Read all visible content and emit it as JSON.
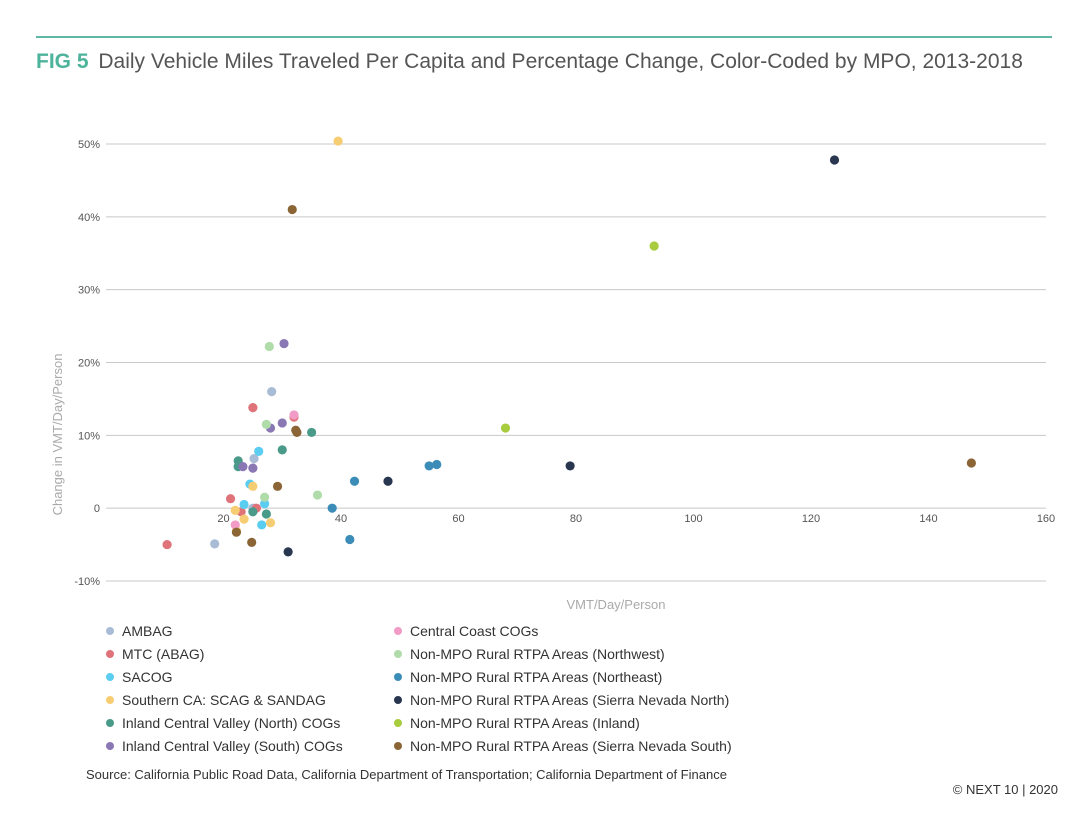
{
  "figure": {
    "label": "FIG 5",
    "title": "Daily Vehicle Miles Traveled Per Capita and Percentage Change, Color-Coded by MPO, 2013-2018",
    "source": "Source: California Public Road Data, California Department of Transportation; California Department of Finance",
    "copyright": "© NEXT 10 | 2020"
  },
  "chart_data": {
    "type": "scatter",
    "title": "Daily Vehicle Miles Traveled Per Capita and Percentage Change, Color-Coded by MPO, 2013-2018",
    "xlabel": "VMT/Day/Person",
    "ylabel": "Change in VMT/Day/Person",
    "xlim": [
      0,
      160
    ],
    "ylim": [
      -10,
      50
    ],
    "x_ticks": [
      "20",
      "40",
      "60",
      "80",
      "100",
      "120",
      "140",
      "160"
    ],
    "y_ticks": [
      "-10%",
      "0",
      "10%",
      "20%",
      "30%",
      "40%",
      "50%"
    ],
    "grid": "horizontal",
    "legend_position": "bottom-left",
    "series": [
      {
        "name": "AMBAG",
        "color": "#a9bcd6",
        "points": [
          [
            18.5,
            -4.9
          ],
          [
            25.2,
            6.8
          ],
          [
            28.2,
            16.0
          ],
          [
            25.0,
            0.0
          ]
        ]
      },
      {
        "name": "MTC (ABAG)",
        "color": "#e0727a",
        "points": [
          [
            10.4,
            -5.0
          ],
          [
            21.2,
            1.3
          ],
          [
            23.0,
            -0.5
          ],
          [
            25.0,
            13.8
          ],
          [
            25.6,
            0.0
          ],
          [
            32.0,
            12.5
          ]
        ]
      },
      {
        "name": "SACOG",
        "color": "#5bcdf0",
        "points": [
          [
            23.5,
            0.5
          ],
          [
            24.5,
            3.3
          ],
          [
            26.0,
            7.8
          ],
          [
            26.5,
            -2.3
          ],
          [
            27.0,
            0.6
          ]
        ]
      },
      {
        "name": "Southern CA: SCAG & SANDAG",
        "color": "#f7cd73",
        "points": [
          [
            22.0,
            -0.3
          ],
          [
            22.2,
            -3.1
          ],
          [
            23.5,
            -1.5
          ],
          [
            25.0,
            3.0
          ],
          [
            28.0,
            -2.0
          ],
          [
            39.5,
            50.4
          ]
        ]
      },
      {
        "name": "Inland Central Valley (North) COGs",
        "color": "#4a9a8a",
        "points": [
          [
            22.5,
            6.5
          ],
          [
            22.5,
            5.7
          ],
          [
            25.0,
            -0.5
          ],
          [
            27.3,
            -0.8
          ],
          [
            30.0,
            8.0
          ],
          [
            35.0,
            10.4
          ]
        ]
      },
      {
        "name": "Inland Central Valley (South) COGs",
        "color": "#8a78b4",
        "points": [
          [
            23.3,
            5.7
          ],
          [
            25.0,
            5.5
          ],
          [
            28.0,
            11.0
          ],
          [
            30.0,
            11.7
          ],
          [
            30.3,
            22.6
          ]
        ]
      },
      {
        "name": "Central Coast COGs",
        "color": "#f29bc6",
        "points": [
          [
            22.0,
            -2.3
          ],
          [
            32.0,
            12.8
          ]
        ]
      },
      {
        "name": "Non-MPO Rural RTPA Areas (Northwest)",
        "color": "#b0dcaa",
        "points": [
          [
            27.0,
            1.5
          ],
          [
            27.3,
            11.5
          ],
          [
            27.8,
            22.2
          ],
          [
            36.0,
            1.8
          ]
        ]
      },
      {
        "name": "Non-MPO Rural RTPA Areas (Northeast)",
        "color": "#3b8db8",
        "points": [
          [
            38.5,
            0.0
          ],
          [
            41.5,
            -4.3
          ],
          [
            42.3,
            3.7
          ],
          [
            55.0,
            5.8
          ],
          [
            56.3,
            6.0
          ]
        ]
      },
      {
        "name": "Non-MPO Rural RTPA Areas (Sierra Nevada North)",
        "color": "#283650",
        "points": [
          [
            31.0,
            -6.0
          ],
          [
            48.0,
            3.7
          ],
          [
            79.0,
            5.8
          ],
          [
            124.0,
            47.8
          ]
        ]
      },
      {
        "name": "Non-MPO Rural RTPA Areas (Inland)",
        "color": "#a7cc3e",
        "points": [
          [
            68.0,
            11.0
          ],
          [
            93.3,
            36.0
          ]
        ]
      },
      {
        "name": "Non-MPO Rural RTPA Areas (Sierra Nevada South)",
        "color": "#8b6535",
        "points": [
          [
            22.2,
            -3.3
          ],
          [
            24.8,
            -4.7
          ],
          [
            29.2,
            3.0
          ],
          [
            31.7,
            41.0
          ],
          [
            32.3,
            10.7
          ],
          [
            32.5,
            10.4
          ],
          [
            147.3,
            6.2
          ]
        ]
      }
    ]
  }
}
